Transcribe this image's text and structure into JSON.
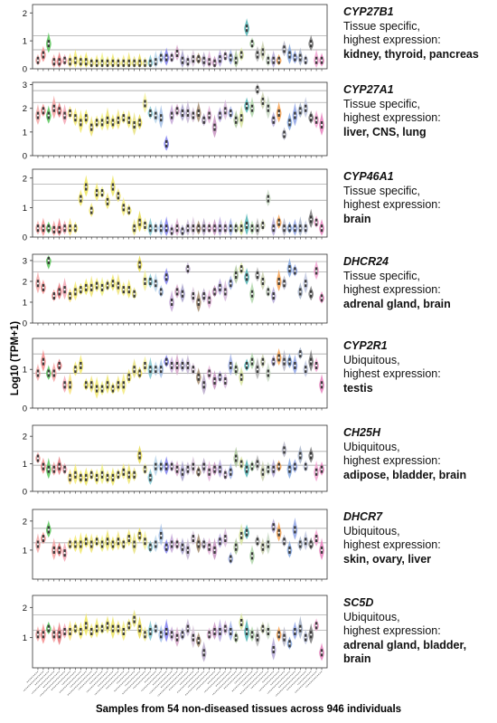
{
  "y_axis_label": "Log10 (TPM+1)",
  "x_caption": "Samples from 54 non-diseased tissues across 946 individuals",
  "chart_data": [
    {
      "type": "violin",
      "gene": "CYP27B1",
      "line1": "Tissue specific,",
      "line2": "highest expression:",
      "highlight": "kidney, thyroid, pancreas",
      "ylim": [
        0,
        2.3
      ],
      "yticks": [
        "0",
        "1",
        "2"
      ],
      "ref_lines": [
        1.18,
        0.68
      ],
      "values": [
        0.3,
        0.5,
        0.9,
        0.25,
        0.25,
        0.3,
        0.25,
        0.3,
        0.25,
        0.25,
        0.2,
        0.2,
        0.2,
        0.2,
        0.2,
        0.2,
        0.2,
        0.2,
        0.2,
        0.2,
        0.2,
        0.2,
        0.25,
        0.4,
        0.4,
        0.4,
        0.55,
        0.3,
        0.25,
        0.35,
        0.35,
        0.3,
        0.25,
        0.2,
        0.35,
        0.45,
        0.4,
        0.3,
        0.5,
        1.45,
        0.9,
        0.5,
        0.6,
        0.3,
        0.3,
        0.3,
        0.7,
        0.5,
        0.4,
        0.4,
        0.3,
        0.9,
        0.3,
        0.3
      ]
    },
    {
      "type": "violin",
      "gene": "CYP27A1",
      "line1": "Tissue specific,",
      "line2": "highest expression:",
      "highlight": "liver, CNS, lung",
      "ylim": [
        0,
        3.1
      ],
      "yticks": [
        "0",
        "1",
        "2",
        "3"
      ],
      "ref_lines": [
        2.75,
        2.25
      ],
      "values": [
        1.7,
        1.9,
        1.7,
        2.0,
        1.9,
        1.7,
        1.8,
        1.6,
        1.4,
        1.6,
        1.2,
        1.4,
        1.4,
        1.5,
        1.4,
        1.5,
        1.6,
        1.5,
        1.3,
        1.4,
        2.2,
        1.8,
        1.7,
        1.6,
        0.5,
        1.7,
        1.9,
        1.8,
        1.8,
        1.7,
        1.8,
        1.5,
        1.7,
        1.2,
        1.7,
        1.9,
        1.8,
        1.5,
        1.6,
        2.1,
        2.0,
        2.8,
        2.3,
        2.0,
        1.5,
        1.8,
        0.9,
        1.4,
        1.7,
        1.9,
        2.0,
        1.6,
        1.5,
        1.3
      ]
    },
    {
      "type": "violin",
      "gene": "CYP46A1",
      "line1": "Tissue specific,",
      "line2": "highest expression:",
      "highlight": "brain",
      "ylim": [
        0,
        2.3
      ],
      "yticks": [
        "0",
        "1",
        "2"
      ],
      "ref_lines": [
        1.8,
        1.25
      ],
      "values": [
        0.3,
        0.3,
        0.3,
        0.25,
        0.25,
        0.3,
        0.3,
        0.3,
        1.3,
        1.7,
        0.9,
        1.5,
        1.5,
        1.2,
        1.7,
        1.4,
        1.0,
        0.9,
        0.3,
        0.5,
        0.4,
        0.3,
        0.3,
        0.3,
        0.3,
        0.2,
        0.3,
        0.2,
        0.3,
        0.3,
        0.3,
        0.3,
        0.3,
        0.3,
        0.3,
        0.3,
        0.3,
        0.3,
        0.3,
        0.4,
        0.3,
        0.3,
        0.4,
        1.3,
        0.3,
        0.5,
        0.3,
        0.3,
        0.3,
        0.3,
        0.3,
        0.6,
        0.5,
        0.3
      ]
    },
    {
      "type": "violin",
      "gene": "DHCR24",
      "line1": "Tissue specific,",
      "line2": "highest expression:",
      "highlight": "adrenal gland, brain",
      "ylim": [
        0,
        3.3
      ],
      "yticks": [
        "0",
        "1",
        "2",
        "3"
      ],
      "ref_lines": [
        2.95,
        2.45
      ],
      "values": [
        1.9,
        1.7,
        3.0,
        1.3,
        1.5,
        1.6,
        1.3,
        1.5,
        1.6,
        1.7,
        1.7,
        1.8,
        1.7,
        1.8,
        1.9,
        1.8,
        1.6,
        1.6,
        1.4,
        2.8,
        2.0,
        2.0,
        1.9,
        1.5,
        2.2,
        1.0,
        1.5,
        1.4,
        2.6,
        1.3,
        1.0,
        1.3,
        1.1,
        1.5,
        1.7,
        1.5,
        1.9,
        2.3,
        2.6,
        2.2,
        1.4,
        2.3,
        2.0,
        1.5,
        1.3,
        2.0,
        1.9,
        2.6,
        2.5,
        1.5,
        1.9,
        1.4,
        2.5,
        1.2
      ]
    },
    {
      "type": "violin",
      "gene": "CYP2R1",
      "line1": "Ubiquitous,",
      "line2": "highest expression:",
      "highlight": "testis",
      "ylim": [
        0,
        1.8
      ],
      "yticks": [
        "0",
        "1"
      ],
      "ref_lines": [
        1.4,
        0.9
      ],
      "values": [
        0.9,
        1.2,
        0.9,
        0.9,
        1.1,
        0.6,
        0.6,
        1.0,
        1.1,
        0.6,
        0.6,
        0.5,
        0.5,
        0.6,
        0.5,
        0.6,
        0.6,
        0.8,
        1.0,
        0.9,
        1.1,
        1.0,
        1.0,
        1.0,
        1.2,
        1.1,
        1.1,
        1.1,
        1.1,
        1.0,
        0.8,
        0.6,
        0.9,
        0.7,
        0.8,
        0.7,
        1.1,
        1.0,
        0.8,
        1.1,
        1.2,
        1.0,
        1.2,
        0.9,
        1.2,
        1.3,
        1.2,
        1.2,
        1.1,
        1.4,
        1.0,
        1.2,
        1.1,
        0.6
      ]
    },
    {
      "type": "violin",
      "gene": "CH25H",
      "line1": "Ubiquitous,",
      "line2": "highest expression:",
      "highlight": "adipose, bladder, brain",
      "ylim": [
        0,
        2.4
      ],
      "yticks": [
        "0",
        "1",
        "2"
      ],
      "ref_lines": [
        1.45,
        0.95
      ],
      "values": [
        1.2,
        0.9,
        0.8,
        0.8,
        0.9,
        0.8,
        0.5,
        0.6,
        0.5,
        0.5,
        0.6,
        0.5,
        0.6,
        0.5,
        0.5,
        0.6,
        0.7,
        0.6,
        0.6,
        1.3,
        0.8,
        0.5,
        0.9,
        0.9,
        0.9,
        0.9,
        0.8,
        0.7,
        0.8,
        0.9,
        0.7,
        0.9,
        0.7,
        0.8,
        0.8,
        0.6,
        0.7,
        1.2,
        1.0,
        0.8,
        0.9,
        1.0,
        0.7,
        0.8,
        0.8,
        0.9,
        1.5,
        0.8,
        0.9,
        1.3,
        0.9,
        1.3,
        0.7,
        0.8
      ]
    },
    {
      "type": "violin",
      "gene": "DHCR7",
      "line1": "Ubiquitous,",
      "line2": "highest expression:",
      "highlight": "skin, ovary, liver",
      "ylim": [
        0,
        2.4
      ],
      "yticks": [
        "1",
        "2"
      ],
      "ref_lines": [
        1.75,
        1.25
      ],
      "values": [
        1.2,
        1.4,
        1.7,
        1.0,
        1.0,
        0.9,
        1.2,
        1.2,
        1.2,
        1.3,
        1.2,
        1.3,
        1.2,
        1.3,
        1.2,
        1.3,
        1.2,
        1.4,
        1.2,
        1.5,
        1.3,
        1.1,
        1.2,
        1.5,
        1.1,
        1.2,
        1.2,
        1.1,
        1.0,
        1.4,
        1.2,
        1.2,
        1.1,
        1.0,
        1.3,
        1.4,
        0.7,
        1.1,
        1.5,
        1.6,
        0.8,
        1.3,
        1.1,
        1.2,
        1.8,
        1.6,
        1.3,
        1.0,
        1.7,
        1.2,
        1.3,
        1.2,
        1.4,
        1.0
      ]
    },
    {
      "type": "violin",
      "gene": "SC5D",
      "line1": "Ubiquitous,",
      "line2": "highest expression:",
      "highlight": "adrenal gland, bladder, brain",
      "ylim": [
        0,
        2.4
      ],
      "yticks": [
        "1",
        "2"
      ],
      "ref_lines": [
        1.75,
        1.25
      ],
      "values": [
        1.1,
        1.1,
        1.3,
        1.1,
        1.1,
        1.2,
        1.2,
        1.3,
        1.2,
        1.4,
        1.2,
        1.3,
        1.3,
        1.4,
        1.3,
        1.3,
        1.2,
        1.4,
        1.6,
        1.3,
        1.1,
        1.2,
        1.3,
        1.1,
        1.2,
        1.1,
        1.0,
        1.1,
        1.3,
        1.0,
        0.9,
        0.5,
        1.1,
        1.2,
        1.2,
        1.3,
        1.2,
        1.0,
        1.5,
        1.2,
        1.1,
        1.0,
        1.3,
        1.2,
        0.6,
        1.1,
        1.0,
        0.8,
        1.2,
        1.3,
        1.0,
        1.1,
        1.4,
        0.5
      ]
    }
  ],
  "tissue_colors": [
    "#f4a9a8",
    "#f48c8c",
    "#58c558",
    "#f4a1a1",
    "#e6787c",
    "#f5a6b4",
    "#f7e17a",
    "#f4ea6f",
    "#f2e768",
    "#eee65c",
    "#efe474",
    "#f1e96c",
    "#eef080",
    "#ebe36a",
    "#ece563",
    "#f0e478",
    "#f3eb7e",
    "#efe56b",
    "#e8e27e",
    "#e6d94f",
    "#f2ee98",
    "#7fc6d0",
    "#b8d6eb",
    "#a5c1e8",
    "#7e7ef0",
    "#c5a8d8",
    "#d6a6c9",
    "#a7a1cb",
    "#c4b5d3",
    "#d6c2d8",
    "#a38b6d",
    "#b9a8c9",
    "#e3b1d8",
    "#c894c2",
    "#b9a9e0",
    "#d7b8dc",
    "#9fb0e6",
    "#adc59e",
    "#d7e39e",
    "#4cb3b3",
    "#b0d6aa",
    "#b1b2b2",
    "#c9cfad",
    "#c8d8c3",
    "#b4a8d6",
    "#f7a14f",
    "#b5b5c5",
    "#83a7e1",
    "#8ea3e6",
    "#a5b2c8",
    "#bfc7df",
    "#7a7a7a",
    "#f2a1d0",
    "#e77fbd"
  ]
}
